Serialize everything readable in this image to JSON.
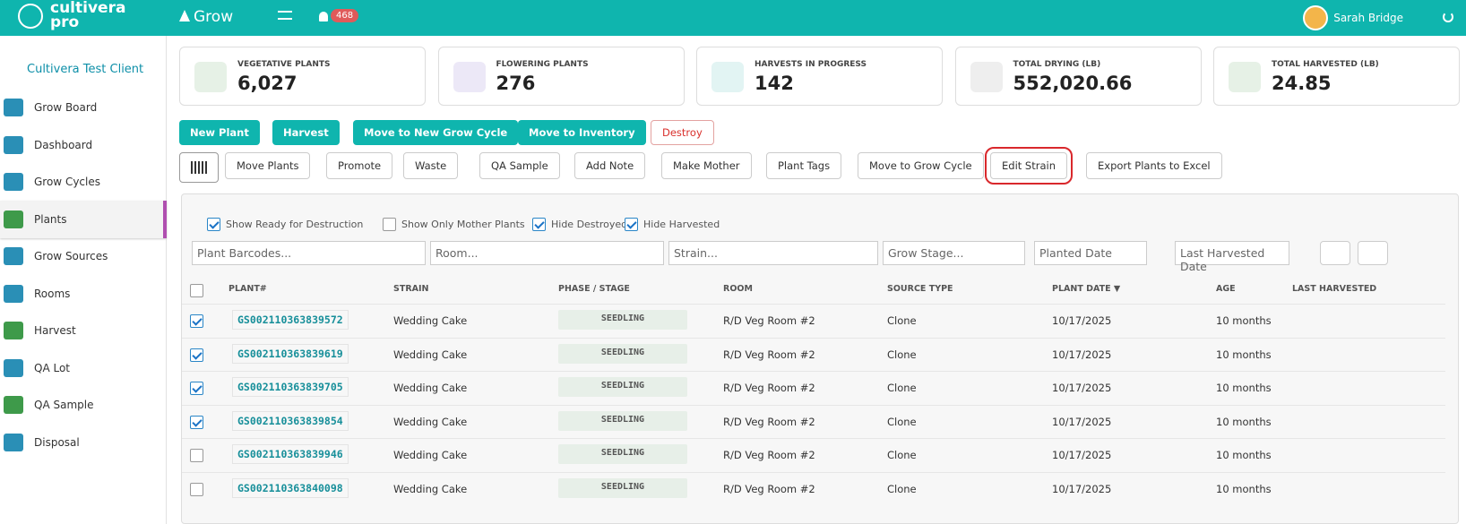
{
  "header": {
    "brand_line1": "cultivera",
    "brand_line2": "pro",
    "module": "Grow",
    "notifications": "468",
    "user": "Sarah Bridge"
  },
  "sidebar": {
    "client": "Cultivera Test Client",
    "items": [
      "Grow Board",
      "Dashboard",
      "Grow Cycles",
      "Plants",
      "Grow Sources",
      "Rooms",
      "Harvest",
      "QA Lot",
      "QA Sample",
      "Disposal"
    ]
  },
  "stats": [
    {
      "label": "VEGETATIVE PLANTS",
      "value": "6,027"
    },
    {
      "label": "FLOWERING PLANTS",
      "value": "276"
    },
    {
      "label": "HARVESTS IN PROGRESS",
      "value": "142"
    },
    {
      "label": "TOTAL DRYING (LB)",
      "value": "552,020.66"
    },
    {
      "label": "TOTAL HARVESTED (LB)",
      "value": "24.85"
    }
  ],
  "primary_actions": [
    "New Plant",
    "Harvest",
    "Move to New Grow Cycle",
    "Move to Inventory",
    "Destroy"
  ],
  "secondary_actions": [
    "Move Plants",
    "Promote",
    "Waste",
    "QA Sample",
    "Add Note",
    "Make Mother",
    "Plant Tags",
    "Move to Grow Cycle",
    "Edit Strain",
    "Export Plants to Excel"
  ],
  "filters": [
    {
      "label": "Show Ready for Destruction",
      "checked": true
    },
    {
      "label": "Show Only Mother Plants",
      "checked": false
    },
    {
      "label": "Hide Destroyed",
      "checked": true
    },
    {
      "label": "Hide Harvested",
      "checked": true
    }
  ],
  "search_placeholders": [
    "Plant Barcodes...",
    "Room...",
    "Strain...",
    "Grow Stage...",
    "Planted Date",
    "Last Harvested Date"
  ],
  "table": {
    "headers": [
      "PLANT#",
      "STRAIN",
      "PHASE / STAGE",
      "ROOM",
      "SOURCE TYPE",
      "PLANT DATE ▼",
      "AGE",
      "LAST HARVESTED"
    ],
    "rows": [
      [
        "GS002110363839572",
        "Wedding Cake",
        "SEEDLING",
        "R/D Veg Room #2",
        "Clone",
        "10/17/2025",
        "10 months"
      ],
      [
        "GS002110363839619",
        "Wedding Cake",
        "SEEDLING",
        "R/D Veg Room #2",
        "Clone",
        "10/17/2025",
        "10 months"
      ],
      [
        "GS002110363839705",
        "Wedding Cake",
        "SEEDLING",
        "R/D Veg Room #2",
        "Clone",
        "10/17/2025",
        "10 months"
      ],
      [
        "GS002110363839854",
        "Wedding Cake",
        "SEEDLING",
        "R/D Veg Room #2",
        "Clone",
        "10/17/2025",
        "10 months"
      ],
      [
        "GS002110363839946",
        "Wedding Cake",
        "SEEDLING",
        "R/D Veg Room #2",
        "Clone",
        "10/17/2025",
        "10 months"
      ],
      [
        "GS002110363840098",
        "Wedding Cake",
        "SEEDLING",
        "R/D Veg Room #2",
        "Clone",
        "10/17/2025",
        "10 months"
      ]
    ],
    "checked": [
      true,
      true,
      true,
      true,
      false,
      false
    ]
  }
}
